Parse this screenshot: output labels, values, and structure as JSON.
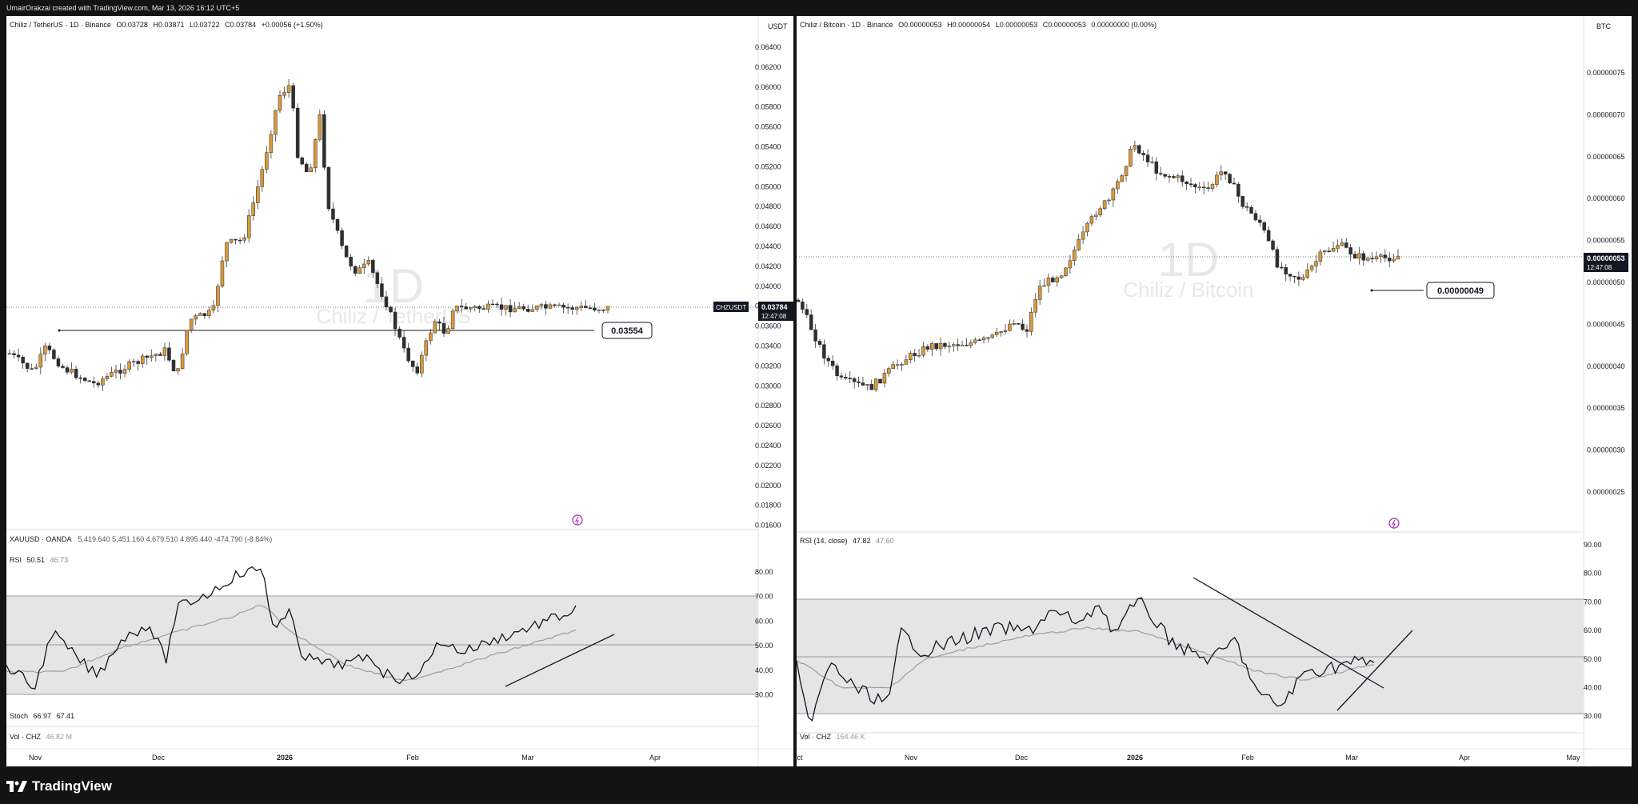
{
  "header": {
    "credit": "UmairOrakzai created with TradingView.com, Mar 13, 2026 16:12 UTC+5"
  },
  "footer": {
    "logo": "TradingView"
  },
  "colors": {
    "up": "#d89a3c",
    "down": "#2f2f2f",
    "rsi_band": "#e5e5e5",
    "rsi_ma": "#9e9e9e",
    "watermark": "#e6e6e6",
    "signal_icon": "#9c27b0"
  },
  "left": {
    "legend": {
      "symbol": "Chiliz / TetherUS · 1D · Binance",
      "open": "O0.03728",
      "high": "H0.03871",
      "low": "L0.03722",
      "close": "C0.03784",
      "change": "+0.00056 (+1.50%)"
    },
    "currency": "USDT",
    "watermark_interval": "1D",
    "watermark_name": "Chiliz / TetherUS",
    "price_ticks": [
      "0.06400",
      "0.06200",
      "0.06000",
      "0.05800",
      "0.05600",
      "0.05400",
      "0.05200",
      "0.05000",
      "0.04800",
      "0.04600",
      "0.04400",
      "0.04200",
      "0.04000",
      "0.03800",
      "0.03600",
      "0.03400",
      "0.03200",
      "0.03000",
      "0.02800",
      "0.02600",
      "0.02400",
      "0.02200",
      "0.02000",
      "0.01800",
      "0.01600"
    ],
    "last_price": {
      "symbol": "CHZUSDT",
      "price": "0.03784",
      "countdown": "12:47:08"
    },
    "level_label": "0.03554",
    "overlay_legend": {
      "symbol": "XAUUSD · OANDA",
      "values": "5,419.640 5,451.160 4,679.510 4,895.440 -474.790 (-8.84%)"
    },
    "rsi": {
      "label": "RSI",
      "value": "50.51",
      "ma": "46.73",
      "ticks": [
        "80.00",
        "70.00",
        "60.00",
        "50.00",
        "40.00",
        "30.00"
      ]
    },
    "stoch": {
      "label": "Stoch",
      "k": "66.97",
      "d": "67.41"
    },
    "vol": {
      "label": "Vol · CHZ",
      "value": "46.82 M"
    },
    "time_ticks": [
      "Nov",
      "Dec",
      "2026",
      "Feb",
      "Mar",
      "Apr"
    ]
  },
  "right": {
    "legend": {
      "symbol": "Chiliz / Bitcoin · 1D · Binance",
      "open": "O0.00000053",
      "high": "H0.00000054",
      "low": "L0.00000053",
      "close": "C0.00000053",
      "change": "0.00000000 (0.00%)"
    },
    "currency": "BTC",
    "watermark_interval": "1D",
    "watermark_name": "Chiliz / Bitcoin",
    "price_ticks": [
      "0.00000075",
      "0.00000070",
      "0.00000065",
      "0.00000060",
      "0.00000055",
      "0.00000050",
      "0.00000045",
      "0.00000040",
      "0.00000035",
      "0.00000030",
      "0.00000025"
    ],
    "last_price": {
      "price": "0.00000053",
      "countdown": "12:47:08"
    },
    "level_label": "0.00000049",
    "rsi": {
      "label": "RSI (14, close)",
      "value": "47.82",
      "ma": "47.60",
      "ticks": [
        "90.00",
        "80.00",
        "70.00",
        "60.00",
        "50.00",
        "40.00",
        "30.00"
      ]
    },
    "vol": {
      "label": "Vol · CHZ",
      "value": "164.46 K"
    },
    "time_ticks": [
      "ct",
      "Nov",
      "Dec",
      "2026",
      "Feb",
      "Mar",
      "Apr",
      "May"
    ]
  }
}
